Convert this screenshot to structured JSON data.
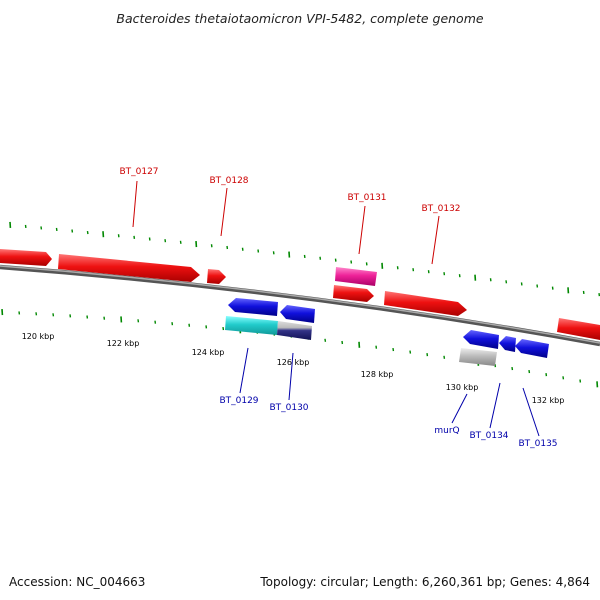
{
  "title": "Bacteroides thetaiotaomicron VPI-5482, complete genome",
  "footer": {
    "accession": "Accession: NC_004663",
    "summary": "Topology: circular; Length: 6,260,361 bp; Genes: 4,864"
  },
  "colors": {
    "forward_label": "#cc0000",
    "reverse_label": "#0000aa",
    "tick": "#008800",
    "backbone": "#888888",
    "red_gene": "#ee1111",
    "blue_gene": "#1111dd",
    "cyan_gene": "#22cccc",
    "gray_gene": "#bbbbbb",
    "pink_gene": "#ee2299"
  },
  "scale": {
    "labels": [
      "120 kbp",
      "122 kbp",
      "124 kbp",
      "126 kbp",
      "128 kbp",
      "130 kbp",
      "132 kbp"
    ]
  },
  "genes": {
    "forward": [
      {
        "name": "BT_0127"
      },
      {
        "name": "BT_0128"
      },
      {
        "name": "BT_0131"
      },
      {
        "name": "BT_0132"
      }
    ],
    "reverse": [
      {
        "name": "BT_0129"
      },
      {
        "name": "BT_0130"
      },
      {
        "name": "murQ"
      },
      {
        "name": "BT_0134"
      },
      {
        "name": "BT_0135"
      }
    ]
  }
}
